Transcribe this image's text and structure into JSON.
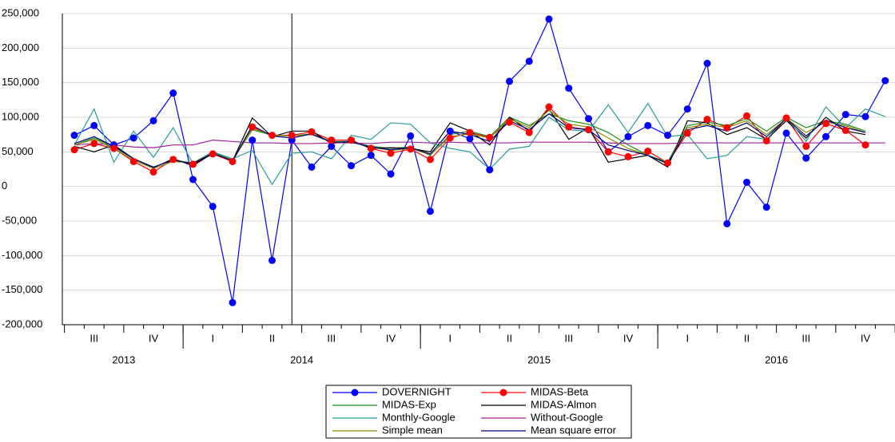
{
  "chart_data": {
    "type": "line",
    "categories": [
      null,
      "III",
      null,
      null,
      "IV",
      null,
      null,
      "I",
      null,
      null,
      "II",
      null,
      null,
      "III",
      null,
      null,
      "IV",
      null,
      null,
      "I",
      null,
      null,
      "II",
      null,
      null,
      "III",
      null,
      null,
      "IV",
      null,
      null,
      "I",
      null,
      null,
      "II",
      null,
      null,
      "III",
      null,
      null,
      "IV",
      null
    ],
    "year_labels": [
      "2013",
      "2014",
      "2015",
      "2016"
    ],
    "vline": 11,
    "ylim": [
      -200000,
      250000
    ],
    "yticks": [
      {
        "value": -200000,
        "label": "-200,000"
      },
      {
        "value": -150000,
        "label": "-150,000"
      },
      {
        "value": -100000,
        "label": "-100,000"
      },
      {
        "value": -50000,
        "label": "-50,000"
      },
      0,
      {
        "value": 50000,
        "label": "50,000"
      },
      {
        "value": 100000,
        "label": "100,000"
      },
      {
        "value": 150000,
        "label": "150,000"
      },
      {
        "value": 200000,
        "label": "200,000"
      },
      {
        "value": 250000,
        "label": "250,000"
      }
    ],
    "grid": true,
    "legend": "bottom",
    "series": [
      {
        "name": "DOVERNIGHT",
        "color": "#0000ff",
        "marker": true,
        "values": [
          74000,
          88000,
          60000,
          70000,
          95000,
          135000,
          10000,
          -29000,
          -168000,
          67000,
          -107000,
          67000,
          28000,
          58000,
          30000,
          45000,
          18000,
          73000,
          -36000,
          80000,
          69000,
          24000,
          152000,
          181000,
          242000,
          142000,
          98000,
          50000,
          72000,
          88000,
          74000,
          112000,
          178000,
          -54000,
          6000,
          -30000,
          77000,
          41000,
          72000,
          104000,
          101000,
          153000
        ]
      },
      {
        "name": "MIDAS-Beta",
        "color": "#ff0000",
        "marker": true,
        "values": [
          53000,
          62000,
          55000,
          36000,
          21000,
          39000,
          32000,
          47000,
          36000,
          86000,
          74000,
          74000,
          79000,
          67000,
          67000,
          55000,
          48000,
          54000,
          39000,
          70000,
          78000,
          71000,
          93000,
          78000,
          115000,
          86000,
          82000,
          50000,
          43000,
          51000,
          34000,
          77000,
          97000,
          85000,
          102000,
          66000,
          99000,
          58000,
          91000,
          81000,
          60000,
          null
        ]
      },
      {
        "name": "MIDAS-Exp",
        "color": "#1a8a1a",
        "marker": false,
        "values": [
          60000,
          70000,
          57000,
          40000,
          28000,
          38000,
          34000,
          50000,
          38000,
          82000,
          74000,
          73000,
          76000,
          65000,
          65000,
          58000,
          55000,
          57000,
          45000,
          75000,
          80000,
          72000,
          100000,
          88000,
          105000,
          95000,
          90000,
          78000,
          60000,
          45000,
          35000,
          88000,
          93000,
          88000,
          98000,
          80000,
          100000,
          85000,
          95000,
          90000,
          80000,
          null
        ]
      },
      {
        "name": "MIDAS-Almon",
        "color": "#000000",
        "marker": false,
        "values": [
          58000,
          50000,
          60000,
          40000,
          27000,
          40000,
          30000,
          48000,
          37000,
          99000,
          72000,
          80000,
          80000,
          62000,
          66000,
          55000,
          56000,
          55000,
          50000,
          92000,
          80000,
          60000,
          100000,
          80000,
          112000,
          68000,
          85000,
          35000,
          40000,
          45000,
          28000,
          95000,
          92000,
          75000,
          85000,
          68000,
          95000,
          70000,
          100000,
          80000,
          75000,
          null
        ]
      },
      {
        "name": "Monthly-Google",
        "color": "#2a9d9d",
        "marker": false,
        "values": [
          60000,
          112000,
          35000,
          80000,
          42000,
          85000,
          33000,
          50000,
          40000,
          52000,
          3000,
          48000,
          50000,
          40000,
          74000,
          68000,
          92000,
          90000,
          63000,
          55000,
          50000,
          25000,
          54000,
          58000,
          100000,
          82000,
          80000,
          118000,
          78000,
          120000,
          72000,
          75000,
          40000,
          45000,
          72000,
          68000,
          100000,
          65000,
          115000,
          85000,
          112000,
          101000
        ]
      },
      {
        "name": "Without-Google",
        "color": "#a020a0",
        "marker": false,
        "values": [
          60000,
          62000,
          60000,
          57000,
          56000,
          60000,
          60000,
          67000,
          65000,
          63000,
          63000,
          62000,
          62000,
          63000,
          63000,
          62000,
          64000,
          64000,
          63000,
          64000,
          63000,
          63000,
          63000,
          64000,
          64000,
          64000,
          64000,
          63000,
          62000,
          62000,
          62000,
          63000,
          63000,
          63000,
          63000,
          63000,
          63000,
          63000,
          63000,
          63000,
          63000,
          63000
        ]
      },
      {
        "name": "Simple mean",
        "color": "#8b8b00",
        "marker": false,
        "values": [
          60000,
          68000,
          55000,
          38000,
          26000,
          36000,
          34000,
          48000,
          38000,
          84000,
          74000,
          73000,
          75000,
          64000,
          64000,
          57000,
          52000,
          55000,
          46000,
          72000,
          76000,
          70000,
          98000,
          85000,
          110000,
          90000,
          86000,
          70000,
          55000,
          45000,
          33000,
          85000,
          90000,
          85000,
          95000,
          75000,
          98000,
          78000,
          93000,
          88000,
          78000,
          null
        ]
      },
      {
        "name": "Mean square error",
        "color": "#000080",
        "marker": false,
        "values": [
          62000,
          72000,
          58000,
          40000,
          28000,
          38000,
          33000,
          48000,
          37000,
          88000,
          73000,
          70000,
          76000,
          64000,
          64000,
          57000,
          53000,
          56000,
          47000,
          80000,
          75000,
          65000,
          95000,
          82000,
          105000,
          85000,
          82000,
          60000,
          52000,
          45000,
          33000,
          82000,
          88000,
          80000,
          92000,
          72000,
          98000,
          73000,
          96000,
          85000,
          78000,
          null
        ]
      }
    ]
  }
}
